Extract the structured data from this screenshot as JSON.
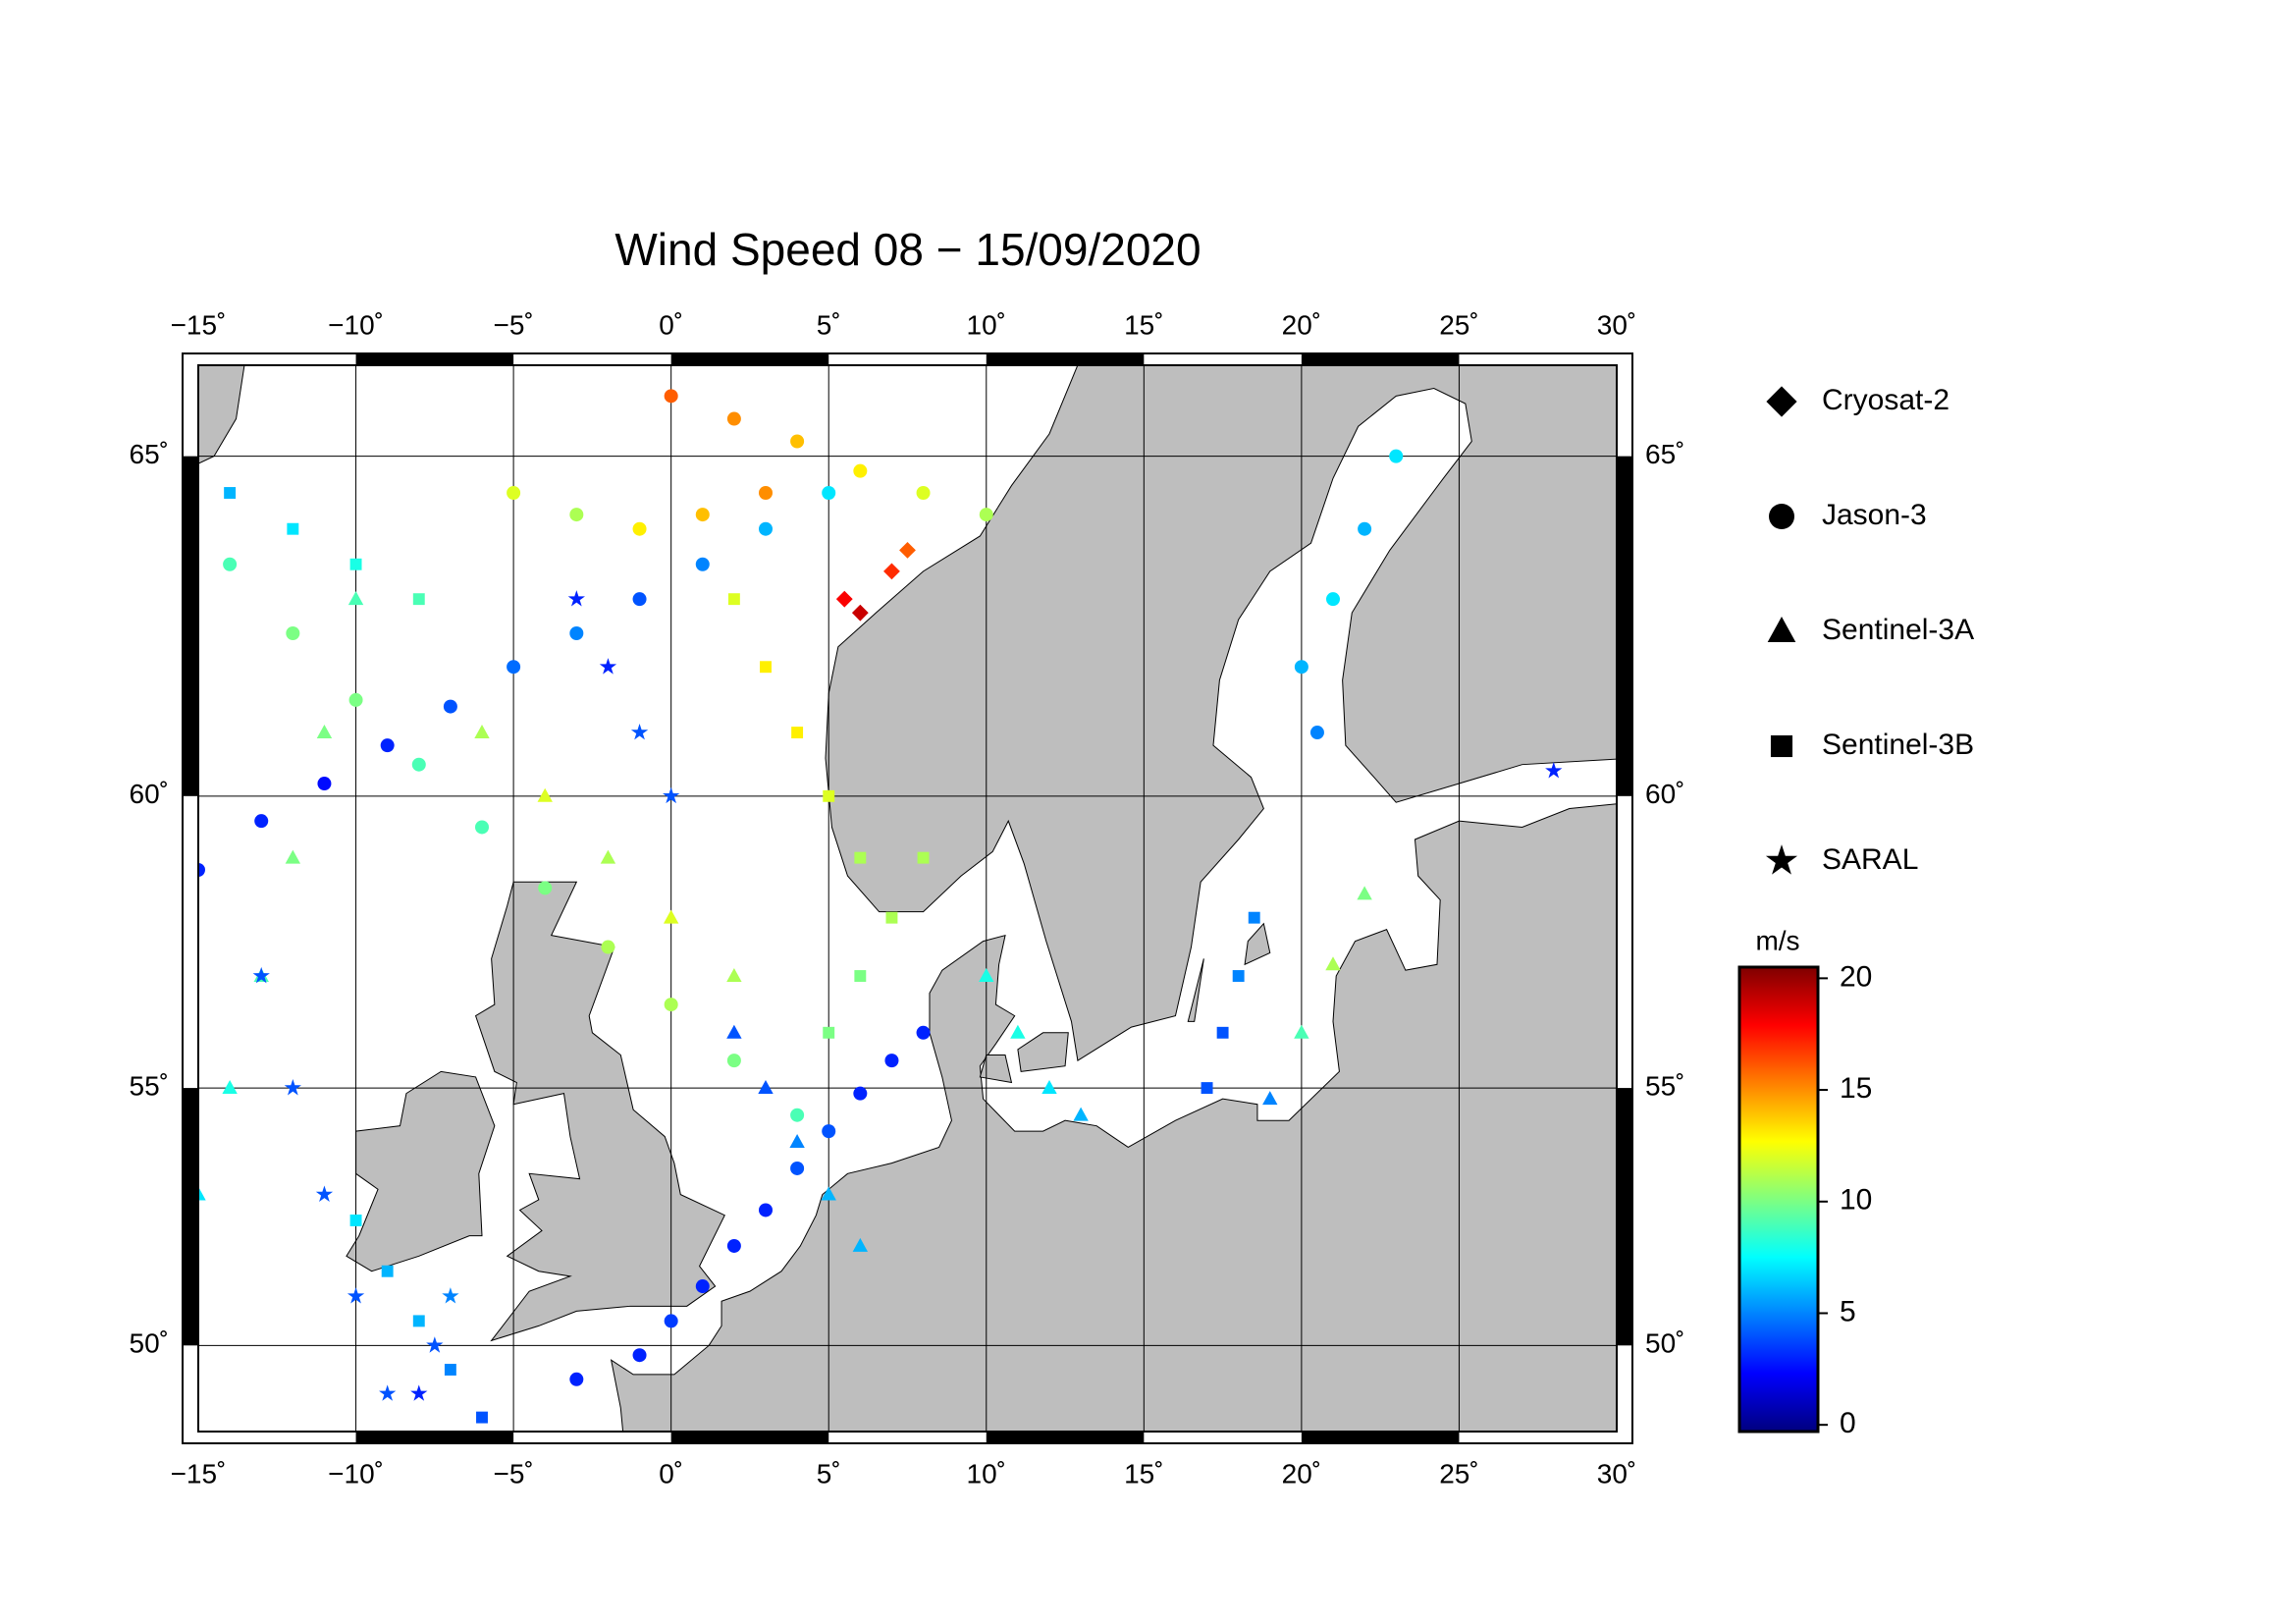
{
  "chart_data": {
    "type": "map-scatter",
    "title": "Wind Speed 08 − 15/09/2020",
    "projection": "mercator",
    "xlim": [
      -15,
      30
    ],
    "ylim": [
      48.2,
      66.2
    ],
    "xticks": [
      {
        "value": -15,
        "label": "−15˚"
      },
      {
        "value": -10,
        "label": "−10˚"
      },
      {
        "value": -5,
        "label": "−5˚"
      },
      {
        "value": 0,
        "label": "0˚"
      },
      {
        "value": 5,
        "label": "5˚"
      },
      {
        "value": 10,
        "label": "10˚"
      },
      {
        "value": 15,
        "label": "15˚"
      },
      {
        "value": 20,
        "label": "20˚"
      },
      {
        "value": 25,
        "label": "25˚"
      },
      {
        "value": 30,
        "label": "30˚"
      }
    ],
    "yticks": [
      {
        "value": 50,
        "label": "50˚"
      },
      {
        "value": 55,
        "label": "55˚"
      },
      {
        "value": 60,
        "label": "60˚"
      },
      {
        "value": 65,
        "label": "65˚"
      }
    ],
    "grid": true,
    "colormap": "jet",
    "colorbar_label": "m/s",
    "clim": [
      -0.3,
      20.5
    ],
    "cticks": [
      0,
      5,
      10,
      15,
      20
    ],
    "legend_color": "#000000",
    "series": [
      {
        "name": "Cryosat-2",
        "marker": "diamond",
        "lon": [
          5.5,
          6,
          7,
          7.5
        ],
        "lat": [
          63,
          62.8,
          63.4,
          63.7
        ],
        "values": [
          18,
          19,
          17,
          16
        ]
      },
      {
        "name": "Jason-3",
        "marker": "circle",
        "lon": [
          -15,
          -13,
          -11,
          -9,
          -7,
          -5,
          -3,
          -1,
          1,
          3,
          5,
          -3,
          -1,
          0,
          1,
          2,
          3,
          4,
          5,
          6,
          7,
          8,
          0,
          2,
          4,
          6,
          8,
          10,
          -5,
          -3,
          -1,
          1,
          3,
          22,
          21,
          20,
          20.5,
          23,
          -14,
          -12,
          -10,
          -8,
          -6,
          -4,
          -2,
          0,
          2,
          4
        ],
        "lat": [
          58.8,
          59.6,
          60.2,
          60.8,
          61.4,
          62,
          62.5,
          63,
          63.5,
          64,
          64.5,
          49.3,
          49.8,
          50.5,
          51.2,
          52,
          52.7,
          53.5,
          54.2,
          54.9,
          55.5,
          56,
          65.8,
          65.5,
          65.2,
          64.8,
          64.5,
          64.2,
          64.5,
          64.2,
          64,
          64.2,
          64.5,
          64,
          63,
          62,
          61,
          65,
          63.5,
          62.5,
          61.5,
          60.5,
          59.5,
          58.5,
          57.5,
          56.5,
          55.5,
          54.5
        ],
        "values": [
          3,
          3,
          2.5,
          3,
          4,
          4.5,
          5,
          4,
          5,
          6,
          7,
          3,
          3,
          3.5,
          3,
          3,
          3,
          4,
          4,
          3,
          3,
          3,
          16,
          15,
          14,
          13,
          12,
          11,
          12,
          11,
          13,
          14,
          15,
          6,
          7,
          6,
          5,
          7,
          9,
          10,
          10,
          9,
          9,
          10,
          11,
          11,
          10,
          9
        ]
      },
      {
        "name": "Sentinel-3A",
        "marker": "triangle",
        "lon": [
          -15,
          -14,
          -13,
          -12,
          -11,
          -10,
          2,
          3,
          4,
          5,
          6,
          10,
          11,
          12,
          13,
          -6,
          -4,
          -2,
          0,
          2,
          19,
          20,
          21,
          22
        ],
        "lat": [
          53,
          55,
          57,
          59,
          61,
          63,
          56,
          55,
          54,
          53,
          52,
          57,
          56,
          55,
          54.5,
          61,
          60,
          59,
          58,
          57,
          54.8,
          56,
          57.2,
          58.4
        ],
        "values": [
          7,
          8,
          9,
          10,
          10,
          9,
          4,
          4,
          5,
          6,
          6,
          8,
          8,
          7,
          6,
          11,
          12,
          11,
          12,
          11,
          5,
          9,
          11,
          10
        ]
      },
      {
        "name": "Sentinel-3B",
        "marker": "square",
        "lon": [
          -6,
          -7,
          -8,
          -9,
          -10,
          5,
          6,
          7,
          8,
          17,
          17.5,
          18,
          18.5,
          2,
          3,
          4,
          5,
          6,
          -14,
          -12,
          -10,
          -8
        ],
        "lat": [
          48.5,
          49.5,
          50.5,
          51.5,
          52.5,
          56,
          57,
          58,
          59,
          55,
          56,
          57,
          58,
          63,
          62,
          61,
          60,
          59,
          64.5,
          64,
          63.5,
          63
        ],
        "values": [
          4,
          5,
          6,
          6,
          7,
          10,
          10,
          11,
          11,
          4,
          4,
          5,
          5,
          12,
          13,
          13,
          12,
          11,
          6,
          7,
          8,
          9
        ]
      },
      {
        "name": "SARAL",
        "marker": "star",
        "lon": [
          -13,
          -12,
          -11,
          -10,
          -9,
          -3,
          -2,
          -1,
          0,
          28,
          -8,
          -7.5,
          -7
        ],
        "lat": [
          57,
          55,
          53,
          51,
          49,
          63,
          62,
          61,
          60,
          60.4,
          49,
          50,
          51
        ],
        "values": [
          4,
          4,
          4,
          4,
          4,
          3,
          3,
          4,
          4,
          3,
          3,
          4,
          5
        ]
      }
    ]
  }
}
